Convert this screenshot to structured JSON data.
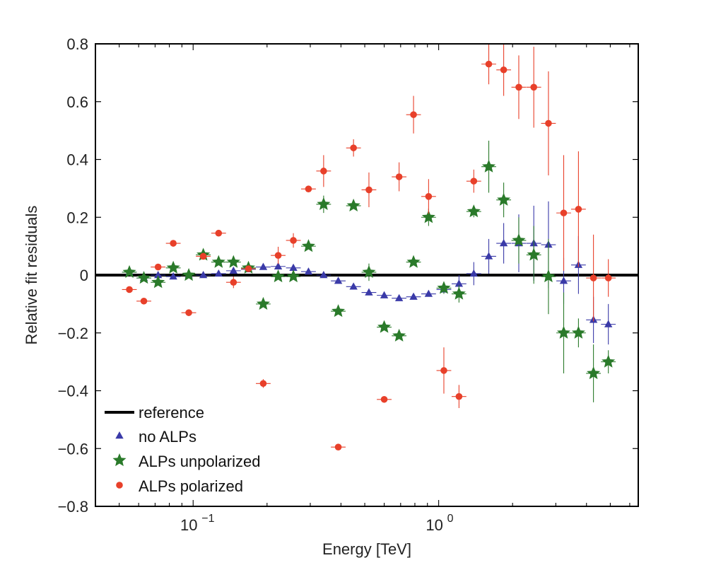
{
  "chart_data": {
    "type": "scatter",
    "xscale": "log",
    "xlim": [
      0.04,
      6.5
    ],
    "ylim": [
      -0.8,
      0.8
    ],
    "xlabel": "Energy [TeV]",
    "ylabel": "Relative fit residuals",
    "yticks": [
      -0.8,
      -0.6,
      -0.4,
      -0.2,
      0,
      0.2,
      0.4,
      0.6,
      0.8
    ],
    "ytick_labels": [
      "−0.8",
      "−0.6",
      "−0.4",
      "−0.2",
      "0",
      "0.2",
      "0.4",
      "0.6",
      "0.8"
    ],
    "xticks": [
      0.1,
      1
    ],
    "xtick_labels": [
      {
        "base": "10",
        "exp": "−1"
      },
      {
        "base": "10",
        "exp": "0"
      }
    ],
    "legend_position": "bottom-left",
    "reference_line": {
      "name": "reference",
      "y": 0,
      "color": "#000000"
    },
    "series": [
      {
        "name": "no ALPs",
        "marker": "triangle",
        "color": "#3a3aa8",
        "points": [
          {
            "x": 0.055,
            "y": 0.01,
            "err": 0.0
          },
          {
            "x": 0.063,
            "y": -0.01,
            "err": 0.0
          },
          {
            "x": 0.072,
            "y": 0.0,
            "err": 0.0
          },
          {
            "x": 0.083,
            "y": -0.005,
            "err": 0.0
          },
          {
            "x": 0.096,
            "y": 0.0,
            "err": 0.0
          },
          {
            "x": 0.11,
            "y": 0.0,
            "err": 0.0
          },
          {
            "x": 0.127,
            "y": 0.005,
            "err": 0.0
          },
          {
            "x": 0.146,
            "y": 0.015,
            "err": 0.0
          },
          {
            "x": 0.168,
            "y": 0.02,
            "err": 0.0
          },
          {
            "x": 0.193,
            "y": 0.028,
            "err": 0.0
          },
          {
            "x": 0.222,
            "y": 0.03,
            "err": 0.0
          },
          {
            "x": 0.256,
            "y": 0.025,
            "err": 0.0
          },
          {
            "x": 0.295,
            "y": 0.012,
            "err": 0.0
          },
          {
            "x": 0.34,
            "y": 0.0,
            "err": 0.0
          },
          {
            "x": 0.39,
            "y": -0.02,
            "err": 0.0
          },
          {
            "x": 0.45,
            "y": -0.04,
            "err": 0.0
          },
          {
            "x": 0.52,
            "y": -0.06,
            "err": 0.0
          },
          {
            "x": 0.6,
            "y": -0.07,
            "err": 0.0
          },
          {
            "x": 0.69,
            "y": -0.08,
            "err": 0.0
          },
          {
            "x": 0.79,
            "y": -0.075,
            "err": 0.0
          },
          {
            "x": 0.91,
            "y": -0.065,
            "err": 0.0
          },
          {
            "x": 1.05,
            "y": -0.05,
            "err": 0.0
          },
          {
            "x": 1.21,
            "y": -0.03,
            "err": 0.03
          },
          {
            "x": 1.39,
            "y": 0.005,
            "err": 0.04
          },
          {
            "x": 1.6,
            "y": 0.065,
            "err": 0.06
          },
          {
            "x": 1.84,
            "y": 0.11,
            "err": 0.07
          },
          {
            "x": 2.12,
            "y": 0.11,
            "err": 0.1
          },
          {
            "x": 2.44,
            "y": 0.11,
            "err": 0.13
          },
          {
            "x": 2.8,
            "y": 0.105,
            "err": 0.15
          },
          {
            "x": 3.23,
            "y": -0.02,
            "err": 0.08
          },
          {
            "x": 3.71,
            "y": 0.035,
            "err": 0.1
          },
          {
            "x": 4.27,
            "y": -0.155,
            "err": 0.08
          },
          {
            "x": 4.91,
            "y": -0.17,
            "err": 0.07
          }
        ]
      },
      {
        "name": "ALPs unpolarized",
        "marker": "star",
        "color": "#2a7a2a",
        "points": [
          {
            "x": 0.055,
            "y": 0.01,
            "err": 0.0
          },
          {
            "x": 0.063,
            "y": -0.01,
            "err": 0.0
          },
          {
            "x": 0.072,
            "y": -0.025,
            "err": 0.0
          },
          {
            "x": 0.083,
            "y": 0.025,
            "err": 0.0
          },
          {
            "x": 0.096,
            "y": 0.0,
            "err": 0.0
          },
          {
            "x": 0.11,
            "y": 0.07,
            "err": 0.0
          },
          {
            "x": 0.127,
            "y": 0.045,
            "err": 0.0
          },
          {
            "x": 0.146,
            "y": 0.045,
            "err": 0.0
          },
          {
            "x": 0.168,
            "y": 0.025,
            "err": 0.0
          },
          {
            "x": 0.193,
            "y": -0.1,
            "err": 0.0
          },
          {
            "x": 0.222,
            "y": -0.005,
            "err": 0.0
          },
          {
            "x": 0.256,
            "y": -0.005,
            "err": 0.0
          },
          {
            "x": 0.295,
            "y": 0.1,
            "err": 0.0
          },
          {
            "x": 0.34,
            "y": 0.245,
            "err": 0.03
          },
          {
            "x": 0.39,
            "y": -0.125,
            "err": 0.0
          },
          {
            "x": 0.45,
            "y": 0.24,
            "err": 0.0
          },
          {
            "x": 0.52,
            "y": 0.01,
            "err": 0.03
          },
          {
            "x": 0.6,
            "y": -0.18,
            "err": 0.0
          },
          {
            "x": 0.69,
            "y": -0.21,
            "err": 0.0
          },
          {
            "x": 0.79,
            "y": 0.045,
            "err": 0.0
          },
          {
            "x": 0.91,
            "y": 0.2,
            "err": 0.03
          },
          {
            "x": 1.05,
            "y": -0.045,
            "err": 0.02
          },
          {
            "x": 1.21,
            "y": -0.065,
            "err": 0.03
          },
          {
            "x": 1.39,
            "y": 0.22,
            "err": 0.02
          },
          {
            "x": 1.6,
            "y": 0.375,
            "err": 0.09
          },
          {
            "x": 1.84,
            "y": 0.26,
            "err": 0.06
          },
          {
            "x": 2.12,
            "y": 0.12,
            "err": 0.08
          },
          {
            "x": 2.44,
            "y": 0.07,
            "err": 0.1
          },
          {
            "x": 2.8,
            "y": -0.005,
            "err": 0.13
          },
          {
            "x": 3.23,
            "y": -0.2,
            "err": 0.14
          },
          {
            "x": 3.71,
            "y": -0.2,
            "err": 0.05
          },
          {
            "x": 4.27,
            "y": -0.34,
            "err": 0.1
          },
          {
            "x": 4.91,
            "y": -0.3,
            "err": 0.04
          }
        ]
      },
      {
        "name": "ALPs polarized",
        "marker": "circle",
        "color": "#e8402a",
        "points": [
          {
            "x": 0.055,
            "y": -0.05,
            "err": 0.0
          },
          {
            "x": 0.063,
            "y": -0.09,
            "err": 0.0
          },
          {
            "x": 0.072,
            "y": 0.028,
            "err": 0.0
          },
          {
            "x": 0.083,
            "y": 0.11,
            "err": 0.0
          },
          {
            "x": 0.096,
            "y": -0.13,
            "err": 0.0
          },
          {
            "x": 0.11,
            "y": 0.065,
            "err": 0.0
          },
          {
            "x": 0.127,
            "y": 0.145,
            "err": 0.0
          },
          {
            "x": 0.146,
            "y": -0.025,
            "err": 0.02
          },
          {
            "x": 0.168,
            "y": 0.022,
            "err": 0.0
          },
          {
            "x": 0.193,
            "y": -0.375,
            "err": 0.015
          },
          {
            "x": 0.222,
            "y": 0.068,
            "err": 0.03
          },
          {
            "x": 0.256,
            "y": 0.12,
            "err": 0.025
          },
          {
            "x": 0.295,
            "y": 0.298,
            "err": 0.01
          },
          {
            "x": 0.34,
            "y": 0.36,
            "err": 0.055
          },
          {
            "x": 0.39,
            "y": -0.595,
            "err": 0.0
          },
          {
            "x": 0.45,
            "y": 0.44,
            "err": 0.03
          },
          {
            "x": 0.52,
            "y": 0.295,
            "err": 0.06
          },
          {
            "x": 0.6,
            "y": -0.43,
            "err": 0.0
          },
          {
            "x": 0.69,
            "y": 0.34,
            "err": 0.05
          },
          {
            "x": 0.79,
            "y": 0.555,
            "err": 0.065
          },
          {
            "x": 0.91,
            "y": 0.272,
            "err": 0.06
          },
          {
            "x": 1.05,
            "y": -0.33,
            "err": 0.08
          },
          {
            "x": 1.21,
            "y": -0.42,
            "err": 0.04
          },
          {
            "x": 1.39,
            "y": 0.325,
            "err": 0.04
          },
          {
            "x": 1.6,
            "y": 0.73,
            "err": 0.07
          },
          {
            "x": 1.84,
            "y": 0.71,
            "err": 0.09
          },
          {
            "x": 2.12,
            "y": 0.65,
            "err": 0.11
          },
          {
            "x": 2.44,
            "y": 0.65,
            "err": 0.14
          },
          {
            "x": 2.8,
            "y": 0.525,
            "err": 0.18
          },
          {
            "x": 3.23,
            "y": 0.215,
            "err": 0.2
          },
          {
            "x": 3.71,
            "y": 0.228,
            "err": 0.2
          },
          {
            "x": 4.27,
            "y": -0.01,
            "err": 0.15
          },
          {
            "x": 4.91,
            "y": -0.01,
            "err": 0.065
          }
        ]
      }
    ]
  }
}
